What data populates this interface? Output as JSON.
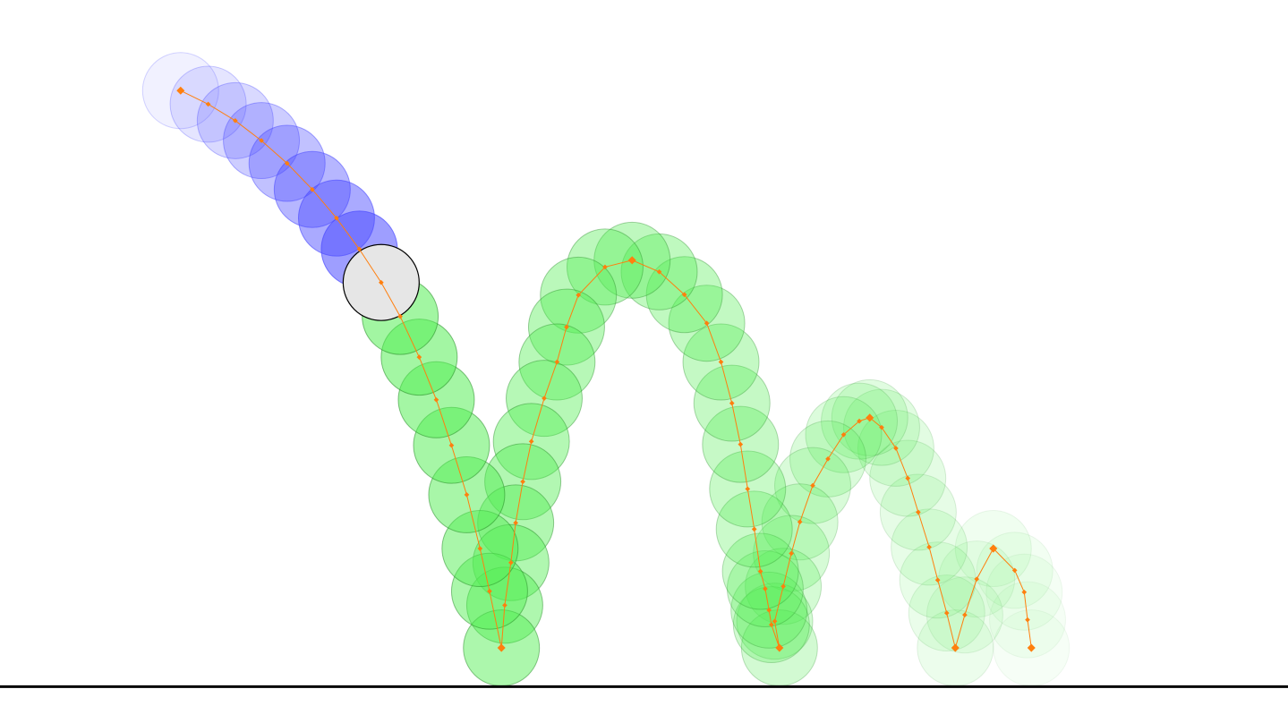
{
  "colors": {
    "background": "#ffffff",
    "ground": "#000000",
    "past_ball": "#4a4aff",
    "current_ball": "#e6e6e6",
    "current_ball_stroke": "#000000",
    "future_ball": "#55ee55",
    "future_ball_stroke": "#228822",
    "trajectory": "#ff7f0e"
  },
  "ball": {
    "radius": 0.8
  },
  "trajectory": [
    {
      "x": 0.0,
      "y": 11.5
    },
    {
      "x": 0.58,
      "y": 11.22
    },
    {
      "x": 1.15,
      "y": 10.88
    },
    {
      "x": 1.7,
      "y": 10.47
    },
    {
      "x": 2.24,
      "y": 10.0
    },
    {
      "x": 2.77,
      "y": 9.46
    },
    {
      "x": 3.28,
      "y": 8.87
    },
    {
      "x": 3.76,
      "y": 8.23
    },
    {
      "x": 4.22,
      "y": 7.54
    },
    {
      "x": 4.62,
      "y": 6.84
    },
    {
      "x": 5.02,
      "y": 6.0
    },
    {
      "x": 5.38,
      "y": 5.12
    },
    {
      "x": 5.7,
      "y": 4.18
    },
    {
      "x": 6.02,
      "y": 3.16
    },
    {
      "x": 6.3,
      "y": 2.05
    },
    {
      "x": 6.5,
      "y": 1.17
    },
    {
      "x": 6.75,
      "y": 0.0
    },
    {
      "x": 6.82,
      "y": 0.88
    },
    {
      "x": 6.95,
      "y": 1.76
    },
    {
      "x": 7.05,
      "y": 2.58
    },
    {
      "x": 7.2,
      "y": 3.43
    },
    {
      "x": 7.38,
      "y": 4.26
    },
    {
      "x": 7.65,
      "y": 5.15
    },
    {
      "x": 7.92,
      "y": 5.9
    },
    {
      "x": 8.12,
      "y": 6.62
    },
    {
      "x": 8.37,
      "y": 7.28
    },
    {
      "x": 8.93,
      "y": 7.86
    },
    {
      "x": 9.5,
      "y": 8.0
    },
    {
      "x": 10.07,
      "y": 7.76
    },
    {
      "x": 10.6,
      "y": 7.29
    },
    {
      "x": 11.07,
      "y": 6.7
    },
    {
      "x": 11.37,
      "y": 5.9
    },
    {
      "x": 11.6,
      "y": 5.05
    },
    {
      "x": 11.78,
      "y": 4.2
    },
    {
      "x": 11.93,
      "y": 3.28
    },
    {
      "x": 12.07,
      "y": 2.45
    },
    {
      "x": 12.2,
      "y": 1.58
    },
    {
      "x": 12.3,
      "y": 1.22
    },
    {
      "x": 12.38,
      "y": 0.78
    },
    {
      "x": 12.43,
      "y": 0.48
    },
    {
      "x": 12.6,
      "y": 0.0
    },
    {
      "x": 12.5,
      "y": 0.55
    },
    {
      "x": 12.68,
      "y": 1.27
    },
    {
      "x": 12.85,
      "y": 1.95
    },
    {
      "x": 13.03,
      "y": 2.6
    },
    {
      "x": 13.3,
      "y": 3.35
    },
    {
      "x": 13.62,
      "y": 3.9
    },
    {
      "x": 13.95,
      "y": 4.4
    },
    {
      "x": 14.28,
      "y": 4.68
    },
    {
      "x": 14.5,
      "y": 4.75
    },
    {
      "x": 14.75,
      "y": 4.55
    },
    {
      "x": 15.05,
      "y": 4.12
    },
    {
      "x": 15.3,
      "y": 3.5
    },
    {
      "x": 15.52,
      "y": 2.8
    },
    {
      "x": 15.75,
      "y": 2.08
    },
    {
      "x": 15.93,
      "y": 1.4
    },
    {
      "x": 16.12,
      "y": 0.72
    },
    {
      "x": 16.3,
      "y": 0.0
    },
    {
      "x": 16.5,
      "y": 0.68
    },
    {
      "x": 16.75,
      "y": 1.42
    },
    {
      "x": 17.1,
      "y": 2.05
    },
    {
      "x": 17.55,
      "y": 1.6
    },
    {
      "x": 17.75,
      "y": 1.15
    },
    {
      "x": 17.82,
      "y": 0.58
    },
    {
      "x": 17.9,
      "y": 0.0
    }
  ],
  "current_index": 8,
  "ground_y": -0.8,
  "view": {
    "xlim": [
      -3.8,
      23.3
    ],
    "ylim": [
      -1.55,
      13.37
    ]
  }
}
